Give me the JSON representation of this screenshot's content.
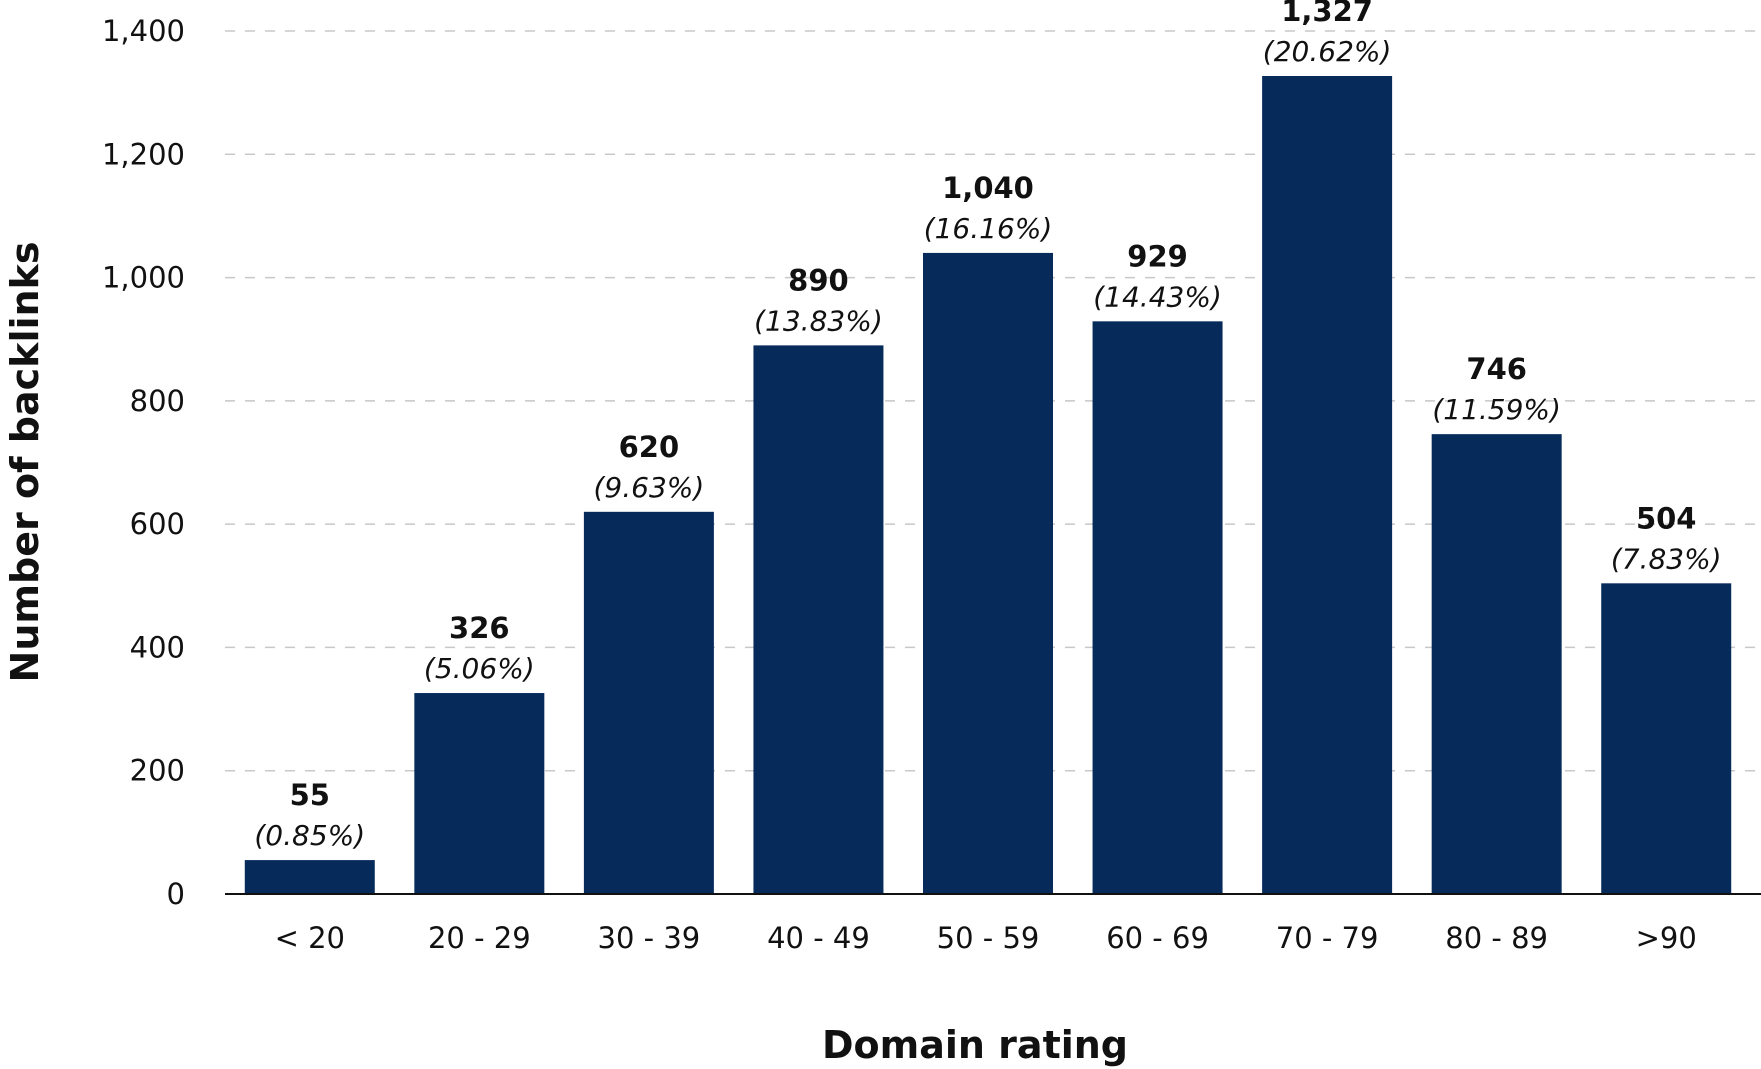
{
  "colors": {
    "bar": "#062b5b",
    "grid": "#c8c8c8",
    "axis": "#111111",
    "text": "#111111"
  },
  "chart_data": {
    "type": "bar",
    "title": "",
    "xlabel": "Domain rating",
    "ylabel": "Number of backlinks",
    "categories": [
      "< 20",
      "20 - 29",
      "30 - 39",
      "40 - 49",
      "50 - 59",
      "60 - 69",
      "70 - 79",
      "80 - 89",
      ">90"
    ],
    "values": [
      55,
      326,
      620,
      890,
      1040,
      929,
      1327,
      746,
      504
    ],
    "value_labels": [
      "55",
      "326",
      "620",
      "890",
      "1,040",
      "929",
      "1,327",
      "746",
      "504"
    ],
    "percent_labels": [
      "(0.85%)",
      "(5.06%)",
      "(9.63%)",
      "(13.83%)",
      "(16.16%)",
      "(14.43%)",
      "(20.62%)",
      "(11.59%)",
      "(7.83%)"
    ],
    "ylim": [
      0,
      1400
    ],
    "yticks": [
      0,
      200,
      400,
      600,
      800,
      1000,
      1200,
      1400
    ],
    "ytick_labels": [
      "0",
      "200",
      "400",
      "600",
      "800",
      "1,000",
      "1,200",
      "1,400"
    ],
    "grid": true,
    "grid_style": "dashed",
    "legend": "none"
  }
}
